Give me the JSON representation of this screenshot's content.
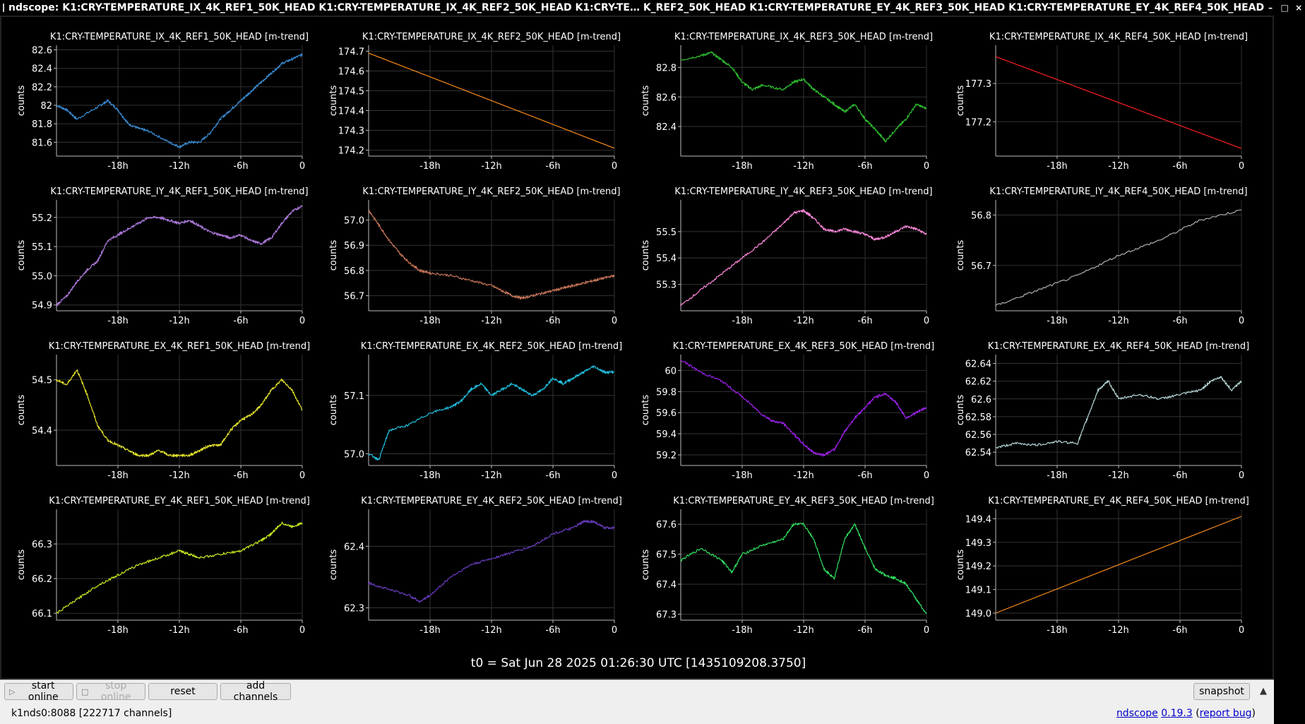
{
  "window": {
    "title": "ndscope: K1:CRY-TEMPERATURE_IX_4K_REF1_50K_HEAD K1:CRY-TEMPERATURE_IX_4K_REF2_50K_HEAD K1:CRY-TE… K_REF2_50K_HEAD K1:CRY-TEMPERATURE_EY_4K_REF3_50K_HEAD K1:CRY-TEMPERATURE_EY_4K_REF4_50K_HEAD",
    "buttons": [
      "–",
      "□",
      "×"
    ]
  },
  "t0_text": "t0 = Sat Jun 28 2025 01:26:30 UTC [1435109208.3750]",
  "toolbar": {
    "start_online": "start online",
    "stop_online": "stop online",
    "reset": "reset",
    "add_channels": "add channels",
    "snapshot": "snapshot"
  },
  "status": {
    "server": "k1nds0:8088  [222717 channels]",
    "app_name": "ndscope",
    "version": "0.19.3",
    "report_bug": "report bug"
  },
  "chart_data": [
    {
      "type": "line",
      "title": "K1:CRY-TEMPERATURE_IX_4K_REF1_50K_HEAD [m-trend]",
      "ylabel": "counts",
      "x_ticks": [
        "-18h",
        "-12h",
        "-6h",
        "0"
      ],
      "y_ticks": [
        "81.6",
        "81.8",
        "82",
        "82.2",
        "82.4",
        "82.6"
      ],
      "xlim": [
        -24,
        0
      ],
      "ylim": [
        81.45,
        82.65
      ],
      "color": "#3b8fd8",
      "series": [
        {
          "x": [
            -24,
            -23,
            -22,
            -20,
            -19,
            -18,
            -17,
            -16,
            -15,
            -13,
            -12,
            -11,
            -10,
            -9,
            -8,
            -7,
            -6,
            -5,
            -4,
            -3,
            -2,
            -1,
            0
          ],
          "y": [
            82.0,
            81.95,
            81.85,
            81.98,
            82.05,
            81.95,
            81.8,
            81.75,
            81.72,
            81.6,
            81.55,
            81.6,
            81.6,
            81.7,
            81.85,
            81.95,
            82.05,
            82.15,
            82.25,
            82.35,
            82.45,
            82.5,
            82.55
          ]
        }
      ]
    },
    {
      "type": "line",
      "title": "K1:CRY-TEMPERATURE_IX_4K_REF2_50K_HEAD [m-trend]",
      "ylabel": "counts",
      "x_ticks": [
        "-18h",
        "-12h",
        "-6h",
        "0"
      ],
      "y_ticks": [
        "174.2",
        "174.3",
        "174.4",
        "174.5",
        "174.6",
        "174.7"
      ],
      "xlim": [
        -24,
        0
      ],
      "ylim": [
        174.17,
        174.73
      ],
      "color": "#ff8c1a",
      "series": [
        {
          "x": [
            -24,
            0
          ],
          "y": [
            174.69,
            174.21
          ]
        }
      ]
    },
    {
      "type": "line",
      "title": "K1:CRY-TEMPERATURE_IX_4K_REF3_50K_HEAD [m-trend]",
      "ylabel": "counts",
      "x_ticks": [
        "-18h",
        "-12h",
        "-6h",
        "0"
      ],
      "y_ticks": [
        "82.4",
        "82.6",
        "82.8"
      ],
      "xlim": [
        -24,
        0
      ],
      "ylim": [
        82.2,
        82.95
      ],
      "color": "#2fbf2f",
      "series": [
        {
          "x": [
            -24,
            -22,
            -21,
            -20,
            -19,
            -18,
            -17,
            -16,
            -14,
            -13,
            -12,
            -11,
            -10,
            -9,
            -8,
            -7,
            -6,
            -5,
            -4,
            -3,
            -2,
            -1,
            0
          ],
          "y": [
            82.85,
            82.88,
            82.9,
            82.85,
            82.8,
            82.7,
            82.65,
            82.68,
            82.65,
            82.7,
            82.72,
            82.65,
            82.6,
            82.55,
            82.5,
            82.55,
            82.45,
            82.38,
            82.3,
            82.38,
            82.45,
            82.55,
            82.52
          ]
        }
      ]
    },
    {
      "type": "line",
      "title": "K1:CRY-TEMPERATURE_IX_4K_REF4_50K_HEAD [m-trend]",
      "ylabel": "counts",
      "x_ticks": [
        "-18h",
        "-12h",
        "-6h",
        "0"
      ],
      "y_ticks": [
        "177.2",
        "177.3"
      ],
      "xlim": [
        -24,
        0
      ],
      "ylim": [
        177.11,
        177.4
      ],
      "color": "#ff2020",
      "series": [
        {
          "x": [
            -24,
            0
          ],
          "y": [
            177.37,
            177.13
          ]
        }
      ]
    },
    {
      "type": "line",
      "title": "K1:CRY-TEMPERATURE_IY_4K_REF1_50K_HEAD [m-trend]",
      "ylabel": "counts",
      "x_ticks": [
        "-18h",
        "-12h",
        "-6h",
        "0"
      ],
      "y_ticks": [
        "54.9",
        "55.0",
        "55.1",
        "55.2"
      ],
      "xlim": [
        -24,
        0
      ],
      "ylim": [
        54.88,
        55.26
      ],
      "color": "#b07be0",
      "series": [
        {
          "x": [
            -24,
            -23,
            -22,
            -21,
            -20,
            -19,
            -18,
            -17,
            -16,
            -15,
            -14,
            -13,
            -12,
            -11,
            -10,
            -9,
            -8,
            -7,
            -6,
            -5,
            -4,
            -3,
            -2,
            -1,
            0
          ],
          "y": [
            54.9,
            54.93,
            54.98,
            55.02,
            55.05,
            55.12,
            55.14,
            55.16,
            55.18,
            55.2,
            55.2,
            55.19,
            55.18,
            55.19,
            55.17,
            55.15,
            55.14,
            55.13,
            55.14,
            55.12,
            55.11,
            55.13,
            55.18,
            55.22,
            55.24
          ]
        }
      ]
    },
    {
      "type": "line",
      "title": "K1:CRY-TEMPERATURE_IY_4K_REF2_50K_HEAD [m-trend]",
      "ylabel": "counts",
      "x_ticks": [
        "-18h",
        "-12h",
        "-6h",
        "0"
      ],
      "y_ticks": [
        "56.7",
        "56.8",
        "56.9",
        "57.0"
      ],
      "xlim": [
        -24,
        0
      ],
      "ylim": [
        56.64,
        57.08
      ],
      "color": "#c8765a",
      "series": [
        {
          "x": [
            -24,
            -23,
            -22,
            -21,
            -20,
            -19,
            -18,
            -16,
            -14,
            -12,
            -11,
            -10,
            -9,
            -8,
            -7,
            -6,
            -5,
            -4,
            -3,
            -2,
            -1,
            0
          ],
          "y": [
            57.04,
            56.98,
            56.92,
            56.87,
            56.83,
            56.8,
            56.79,
            56.78,
            56.76,
            56.74,
            56.72,
            56.7,
            56.69,
            56.7,
            56.71,
            56.72,
            56.73,
            56.74,
            56.75,
            56.76,
            56.77,
            56.78
          ]
        }
      ]
    },
    {
      "type": "line",
      "title": "K1:CRY-TEMPERATURE_IY_4K_REF3_50K_HEAD [m-trend]",
      "ylabel": "counts",
      "x_ticks": [
        "-18h",
        "-12h",
        "-6h",
        "0"
      ],
      "y_ticks": [
        "55.3",
        "55.4",
        "55.5"
      ],
      "xlim": [
        -24,
        0
      ],
      "ylim": [
        55.2,
        55.62
      ],
      "color": "#ff88dd",
      "series": [
        {
          "x": [
            -24,
            -22,
            -20,
            -18,
            -16,
            -14,
            -13,
            -12,
            -11,
            -10,
            -9,
            -8,
            -7,
            -6,
            -5,
            -4,
            -3,
            -2,
            -1,
            0
          ],
          "y": [
            55.22,
            55.28,
            55.34,
            55.4,
            55.46,
            55.53,
            55.57,
            55.58,
            55.55,
            55.51,
            55.5,
            55.51,
            55.5,
            55.49,
            55.47,
            55.48,
            55.5,
            55.52,
            55.51,
            55.49
          ]
        }
      ]
    },
    {
      "type": "line",
      "title": "K1:CRY-TEMPERATURE_IY_4K_REF4_50K_HEAD [m-trend]",
      "ylabel": "counts",
      "x_ticks": [
        "-18h",
        "-12h",
        "-6h",
        "0"
      ],
      "y_ticks": [
        "56.7",
        "56.8"
      ],
      "xlim": [
        -24,
        0
      ],
      "ylim": [
        56.61,
        56.83
      ],
      "color": "#b0b0b0",
      "series": [
        {
          "x": [
            -24,
            -20,
            -16,
            -12,
            -8,
            -4,
            0
          ],
          "y": [
            56.62,
            56.65,
            56.68,
            56.72,
            56.75,
            56.79,
            56.81
          ]
        }
      ]
    },
    {
      "type": "line",
      "title": "K1:CRY-TEMPERATURE_EX_4K_REF1_50K_HEAD [m-trend]",
      "ylabel": "counts",
      "x_ticks": [
        "-18h",
        "-12h",
        "-6h",
        "0"
      ],
      "y_ticks": [
        "54.4",
        "54.5"
      ],
      "xlim": [
        -24,
        0
      ],
      "ylim": [
        54.33,
        54.55
      ],
      "color": "#e6e62a",
      "series": [
        {
          "x": [
            -24,
            -23,
            -22,
            -21,
            -20,
            -19,
            -18,
            -17,
            -16,
            -15,
            -14,
            -13,
            -12,
            -11,
            -10,
            -9,
            -8,
            -7,
            -6,
            -5,
            -4,
            -3,
            -2,
            -1,
            0
          ],
          "y": [
            54.5,
            54.49,
            54.52,
            54.47,
            54.41,
            54.38,
            54.37,
            54.36,
            54.35,
            54.35,
            54.36,
            54.35,
            54.35,
            54.35,
            54.36,
            54.37,
            54.37,
            54.4,
            54.42,
            54.43,
            54.45,
            54.48,
            54.5,
            54.48,
            54.44
          ]
        }
      ]
    },
    {
      "type": "line",
      "title": "K1:CRY-TEMPERATURE_EX_4K_REF2_50K_HEAD [m-trend]",
      "ylabel": "counts",
      "x_ticks": [
        "-18h",
        "-12h",
        "-6h",
        "0"
      ],
      "y_ticks": [
        "57.0",
        "57.1"
      ],
      "xlim": [
        -24,
        0
      ],
      "ylim": [
        56.98,
        57.17
      ],
      "color": "#20c0e0",
      "series": [
        {
          "x": [
            -24,
            -23,
            -22,
            -20,
            -18,
            -16,
            -15,
            -14,
            -13,
            -12,
            -11,
            -10,
            -9,
            -8,
            -7,
            -6,
            -5,
            -4,
            -3,
            -2,
            -1,
            0
          ],
          "y": [
            57.0,
            56.99,
            57.04,
            57.05,
            57.07,
            57.08,
            57.09,
            57.11,
            57.12,
            57.1,
            57.11,
            57.12,
            57.11,
            57.1,
            57.11,
            57.13,
            57.12,
            57.13,
            57.14,
            57.15,
            57.14,
            57.14
          ]
        }
      ]
    },
    {
      "type": "line",
      "title": "K1:CRY-TEMPERATURE_EX_4K_REF3_50K_HEAD [m-trend]",
      "ylabel": "counts",
      "x_ticks": [
        "-18h",
        "-12h",
        "-6h",
        "0"
      ],
      "y_ticks": [
        "59.2",
        "59.4",
        "59.6",
        "59.8",
        "60"
      ],
      "xlim": [
        -24,
        0
      ],
      "ylim": [
        59.1,
        60.15
      ],
      "color": "#a020f0",
      "series": [
        {
          "x": [
            -24,
            -22,
            -20,
            -18,
            -16,
            -15,
            -14,
            -13,
            -12,
            -11,
            -10,
            -9,
            -8,
            -7,
            -6,
            -5,
            -4,
            -3,
            -2,
            -1,
            0
          ],
          "y": [
            60.1,
            59.98,
            59.9,
            59.75,
            59.58,
            59.52,
            59.5,
            59.4,
            59.3,
            59.22,
            59.2,
            59.25,
            59.42,
            59.55,
            59.65,
            59.75,
            59.78,
            59.7,
            59.55,
            59.6,
            59.65
          ]
        }
      ]
    },
    {
      "type": "line",
      "title": "K1:CRY-TEMPERATURE_EX_4K_REF4_50K_HEAD [m-trend]",
      "ylabel": "counts",
      "x_ticks": [
        "-18h",
        "-12h",
        "-6h",
        "0"
      ],
      "y_ticks": [
        "62.54",
        "62.56",
        "62.58",
        "62.6",
        "62.62",
        "62.64"
      ],
      "xlim": [
        -24,
        0
      ],
      "ylim": [
        62.525,
        62.65
      ],
      "color": "#b8d8d8",
      "series": [
        {
          "x": [
            -24,
            -22,
            -20,
            -18,
            -16,
            -15,
            -14,
            -13,
            -12,
            -10,
            -8,
            -6,
            -4,
            -3,
            -2,
            -1,
            0
          ],
          "y": [
            62.545,
            62.55,
            62.548,
            62.552,
            62.55,
            62.58,
            62.61,
            62.62,
            62.6,
            62.605,
            62.6,
            62.605,
            62.61,
            62.62,
            62.625,
            62.61,
            62.62
          ]
        }
      ]
    },
    {
      "type": "line",
      "title": "K1:CRY-TEMPERATURE_EY_4K_REF1_50K_HEAD [m-trend]",
      "ylabel": "counts",
      "x_ticks": [
        "-18h",
        "-12h",
        "-6h",
        "0"
      ],
      "y_ticks": [
        "66.1",
        "66.2",
        "66.3"
      ],
      "xlim": [
        -24,
        0
      ],
      "ylim": [
        66.08,
        66.4
      ],
      "color": "#c8f020",
      "series": [
        {
          "x": [
            -24,
            -22,
            -20,
            -18,
            -16,
            -14,
            -12,
            -11,
            -10,
            -8,
            -6,
            -4,
            -3,
            -2,
            -1,
            0
          ],
          "y": [
            66.1,
            66.14,
            66.18,
            66.21,
            66.24,
            66.26,
            66.28,
            66.27,
            66.26,
            66.27,
            66.28,
            66.31,
            66.33,
            66.36,
            66.35,
            66.36
          ]
        }
      ]
    },
    {
      "type": "line",
      "title": "K1:CRY-TEMPERATURE_EY_4K_REF2_50K_HEAD [m-trend]",
      "ylabel": "counts",
      "x_ticks": [
        "-18h",
        "-12h",
        "-6h",
        "0"
      ],
      "y_ticks": [
        "62.3",
        "62.4"
      ],
      "xlim": [
        -24,
        0
      ],
      "ylim": [
        62.28,
        62.46
      ],
      "color": "#6a3cc0",
      "series": [
        {
          "x": [
            -24,
            -22,
            -20,
            -19,
            -18,
            -16,
            -14,
            -12,
            -10,
            -8,
            -6,
            -4,
            -3,
            -2,
            -1,
            0
          ],
          "y": [
            62.34,
            62.33,
            62.32,
            62.31,
            62.32,
            62.35,
            62.37,
            62.38,
            62.39,
            62.4,
            62.42,
            62.43,
            62.44,
            62.44,
            62.43,
            62.43
          ]
        }
      ]
    },
    {
      "type": "line",
      "title": "K1:CRY-TEMPERATURE_EY_4K_REF3_50K_HEAD [m-trend]",
      "ylabel": "counts",
      "x_ticks": [
        "-18h",
        "-12h",
        "-6h",
        "0"
      ],
      "y_ticks": [
        "67.3",
        "67.4",
        "67.5",
        "67.6"
      ],
      "xlim": [
        -24,
        0
      ],
      "ylim": [
        67.28,
        67.65
      ],
      "color": "#30e060",
      "series": [
        {
          "x": [
            -24,
            -22,
            -20,
            -19,
            -18,
            -16,
            -14,
            -13,
            -12,
            -11,
            -10,
            -9,
            -8,
            -7,
            -6,
            -5,
            -4,
            -3,
            -2,
            -1,
            0
          ],
          "y": [
            67.48,
            67.52,
            67.48,
            67.44,
            67.5,
            67.53,
            67.55,
            67.6,
            67.6,
            67.55,
            67.45,
            67.42,
            67.55,
            67.6,
            67.52,
            67.45,
            67.43,
            67.42,
            67.4,
            67.35,
            67.3
          ]
        }
      ]
    },
    {
      "type": "line",
      "title": "K1:CRY-TEMPERATURE_EY_4K_REF4_50K_HEAD [m-trend]",
      "ylabel": "counts",
      "x_ticks": [
        "-18h",
        "-12h",
        "-6h",
        "0"
      ],
      "y_ticks": [
        "149.0",
        "149.1",
        "149.2",
        "149.3",
        "149.4"
      ],
      "xlim": [
        -24,
        0
      ],
      "ylim": [
        148.97,
        149.44
      ],
      "color": "#ff8c1a",
      "series": [
        {
          "x": [
            -24,
            0
          ],
          "y": [
            149.0,
            149.41
          ]
        }
      ]
    }
  ]
}
